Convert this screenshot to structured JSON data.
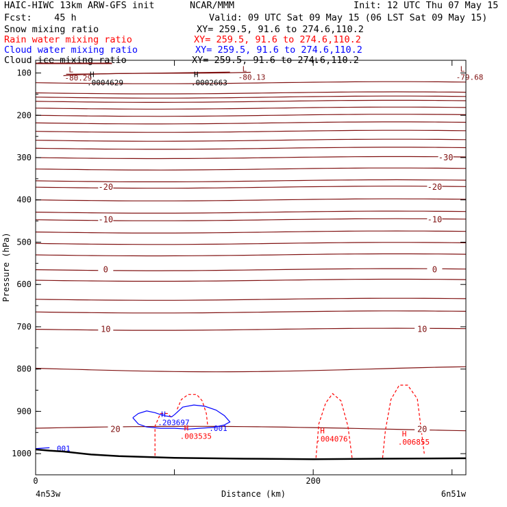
{
  "header": {
    "model": "HAIC-HIWC 13km ARW-GFS init",
    "org": "NCAR/MMM",
    "init": "Init: 12 UTC Thu 07 May 15",
    "fcst": "Fcst:    45 h",
    "valid": "Valid: 09 UTC Sat 09 May 15 (06 LST Sat 09 May 15)"
  },
  "fields": [
    {
      "name": "Snow mixing ratio",
      "xy": "XY= 259.5, 91.6 to 274.6,110.2",
      "color": "#000000"
    },
    {
      "name": "Rain water mixing ratio",
      "xy": "XY= 259.5, 91.6 to 274.6,110.2",
      "color": "#ff0000"
    },
    {
      "name": "Cloud water mixing ratio",
      "xy": "XY= 259.5, 91.6 to 274.6,110.2",
      "color": "#0000ff"
    },
    {
      "name": "Cloud ice mixing ratio",
      "xy": "XY= 259.5, 91.6 to 274.6,110.2",
      "color": "#000000"
    }
  ],
  "chart_data": {
    "type": "line",
    "xlabel": "Distance (km)",
    "ylabel": "Pressure (hPa)",
    "xlim": [
      0,
      310
    ],
    "ylim": [
      1050,
      70
    ],
    "y_ticks": [
      100,
      200,
      300,
      400,
      500,
      600,
      700,
      800,
      900,
      1000
    ],
    "x_ticks": [
      0,
      100,
      200,
      300
    ],
    "x_tick_labels": [
      "0",
      "",
      "200",
      ""
    ],
    "x_end_labels": {
      "left": "4n53w",
      "right": "6n51w"
    },
    "colors": {
      "temp": "#7f1010",
      "rain": "#ff0000",
      "cloud": "#0000ff",
      "ice": "#000000",
      "ground": "#000000"
    },
    "isotherms": [
      {
        "p": 100,
        "label": "",
        "wavy": true
      },
      {
        "p": 123,
        "label": ""
      },
      {
        "p": 147,
        "label": ""
      },
      {
        "p": 157,
        "label": ""
      },
      {
        "p": 167,
        "label": ""
      },
      {
        "p": 183,
        "label": ""
      },
      {
        "p": 200,
        "label": ""
      },
      {
        "p": 218,
        "label": ""
      },
      {
        "p": 238,
        "label": ""
      },
      {
        "p": 259,
        "label": ""
      },
      {
        "p": 278,
        "label": ""
      },
      {
        "p": 300,
        "label": "-30",
        "label_x": [
          295
        ]
      },
      {
        "p": 327,
        "label": ""
      },
      {
        "p": 355,
        "label": ""
      },
      {
        "p": 370,
        "label": "-20",
        "label_x": [
          50,
          287
        ]
      },
      {
        "p": 400,
        "label": ""
      },
      {
        "p": 429,
        "label": ""
      },
      {
        "p": 447,
        "label": "-10",
        "label_x": [
          50,
          287
        ]
      },
      {
        "p": 476,
        "label": ""
      },
      {
        "p": 503,
        "label": ""
      },
      {
        "p": 530,
        "label": ""
      },
      {
        "p": 565,
        "label": "0",
        "label_x": [
          50,
          287
        ]
      },
      {
        "p": 590,
        "label": ""
      },
      {
        "p": 635,
        "label": ""
      },
      {
        "p": 665,
        "label": ""
      },
      {
        "p": 706,
        "label": "10",
        "label_x": [
          50,
          278
        ]
      },
      {
        "p": 800,
        "label": ""
      },
      {
        "p": 942,
        "label": "20",
        "label_x": [
          57,
          278
        ]
      }
    ],
    "extrema_temp": [
      {
        "x": 15,
        "p": 100,
        "kind": "L",
        "value": "-80.29"
      },
      {
        "x": 140,
        "p": 98,
        "kind": "L",
        "value": "-80.13"
      },
      {
        "x": 297,
        "p": 98,
        "kind": "L",
        "value": "-79.68"
      }
    ],
    "extrema_ice": [
      {
        "x": 38,
        "p": 110,
        "kind": "H",
        "value": ".0004629"
      },
      {
        "x": 113,
        "p": 110,
        "kind": "H",
        "value": ".0002663"
      }
    ],
    "rain_contours": [
      {
        "x": [
          86,
          86,
          90,
          95,
          98
        ],
        "p": [
          1005,
          935,
          905,
          905,
          915
        ]
      },
      {
        "x": [
          102,
          105,
          110,
          116,
          120,
          123,
          124
        ],
        "p": [
          895,
          872,
          860,
          860,
          875,
          905,
          935
        ]
      },
      {
        "x": [
          202,
          204,
          209,
          214,
          220,
          225,
          228
        ],
        "p": [
          1010,
          930,
          880,
          858,
          875,
          935,
          1010
        ]
      },
      {
        "x": [
          250,
          252,
          256,
          262,
          268,
          275,
          280
        ],
        "p": [
          1010,
          945,
          872,
          838,
          838,
          870,
          1000
        ]
      }
    ],
    "extrema_rain": [
      {
        "x": 104,
        "p": 955,
        "kind": "H",
        "value": ".003535"
      },
      {
        "x": 202,
        "p": 962,
        "kind": "H",
        "value": ".004076"
      },
      {
        "x": 261,
        "p": 969,
        "kind": "H",
        "value": ".006855"
      }
    ],
    "cloud_contours": [
      {
        "x": [
          70,
          74,
          80,
          86,
          92,
          98,
          100
        ],
        "p": [
          915,
          905,
          899,
          903,
          910,
          913,
          908
        ],
        "x2": [
          100,
          106,
          114,
          122,
          130,
          136,
          140,
          136,
          128,
          118,
          110,
          100,
          90,
          80,
          74,
          70
        ],
        "p2": [
          908,
          890,
          885,
          888,
          897,
          910,
          925,
          932,
          938,
          940,
          942,
          940,
          940,
          937,
          930,
          915
        ]
      }
    ],
    "extrema_cloud": [
      {
        "x": 88,
        "p": 918,
        "kind": "H",
        "value": ".203697"
      }
    ],
    "cloud_labels": [
      {
        "x": 125,
        "p": 940,
        "text": ".001"
      },
      {
        "x": 12,
        "p": 988,
        "text": ".001"
      }
    ],
    "ground": {
      "x": [
        0,
        10,
        20,
        40,
        60,
        100,
        150,
        200,
        250,
        310
      ],
      "p": [
        990,
        993,
        995,
        1002,
        1006,
        1010,
        1012,
        1013,
        1012,
        1011
      ]
    }
  }
}
